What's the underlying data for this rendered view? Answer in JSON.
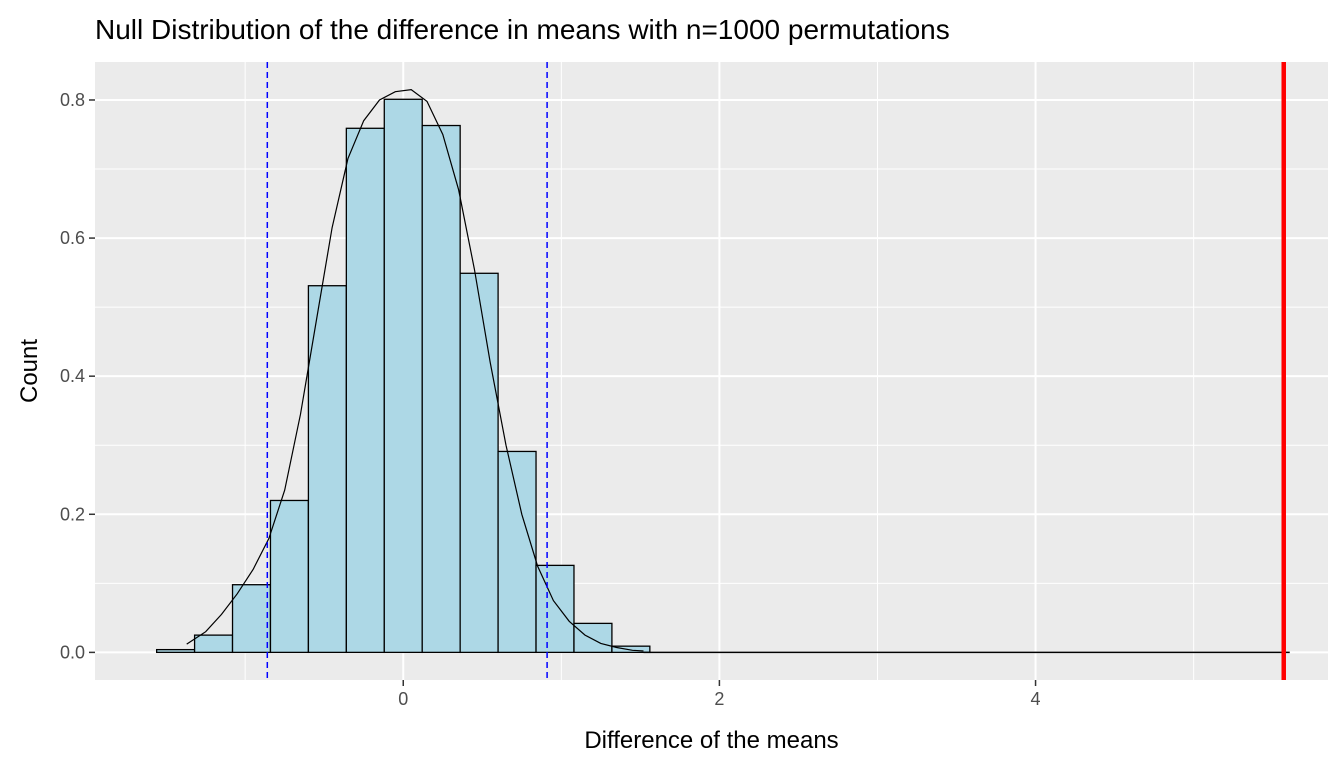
{
  "chart_data": {
    "type": "bar",
    "title": "Null Distribution of the difference in means with n=1000 permutations",
    "xlabel": "Difference of the means",
    "ylabel": "Count",
    "xlim": [
      -1.95,
      5.85
    ],
    "ylim": [
      -0.04,
      0.855
    ],
    "x_ticks": [
      0,
      2,
      4
    ],
    "x_tick_labels": [
      "0",
      "2",
      "4"
    ],
    "y_ticks": [
      0,
      0.2,
      0.4,
      0.6,
      0.8
    ],
    "y_tick_labels": [
      "0.0",
      "0.2",
      "0.4",
      "0.6",
      "0.8"
    ],
    "grid": true,
    "legend": "none",
    "bin_width": 0.24,
    "bin_starts": [
      -1.56,
      -1.32,
      -1.08,
      -0.84,
      -0.6,
      -0.36,
      -0.12,
      0.12,
      0.36,
      0.6,
      0.84,
      1.08,
      1.32
    ],
    "values": [
      0.004,
      0.025,
      0.098,
      0.22,
      0.531,
      0.759,
      0.801,
      0.763,
      0.549,
      0.291,
      0.126,
      0.042,
      0.009
    ],
    "density_curve": {
      "x": [
        -1.37,
        -1.25,
        -1.15,
        -1.05,
        -0.95,
        -0.85,
        -0.75,
        -0.65,
        -0.55,
        -0.45,
        -0.35,
        -0.25,
        -0.15,
        -0.05,
        0.05,
        0.15,
        0.25,
        0.35,
        0.45,
        0.55,
        0.65,
        0.75,
        0.85,
        0.95,
        1.05,
        1.15,
        1.25,
        1.35,
        1.45,
        1.52
      ],
      "y": [
        0.012,
        0.03,
        0.055,
        0.085,
        0.12,
        0.165,
        0.235,
        0.345,
        0.48,
        0.615,
        0.715,
        0.77,
        0.8,
        0.812,
        0.815,
        0.798,
        0.75,
        0.67,
        0.555,
        0.42,
        0.3,
        0.2,
        0.125,
        0.075,
        0.045,
        0.025,
        0.013,
        0.007,
        0.003,
        0.002
      ]
    },
    "reference_lines": [
      {
        "x": -0.86,
        "style": "dashed",
        "color": "#0000FF"
      },
      {
        "x": 0.91,
        "style": "dashed",
        "color": "#0000FF"
      },
      {
        "x": 5.57,
        "style": "solid",
        "color": "#FF0000"
      }
    ],
    "colors": {
      "panel_background": "#EBEBEB",
      "grid": "#FFFFFF",
      "bar_fill": "#ADD8E6",
      "bar_outline": "#000000",
      "density_line": "#000000"
    }
  }
}
